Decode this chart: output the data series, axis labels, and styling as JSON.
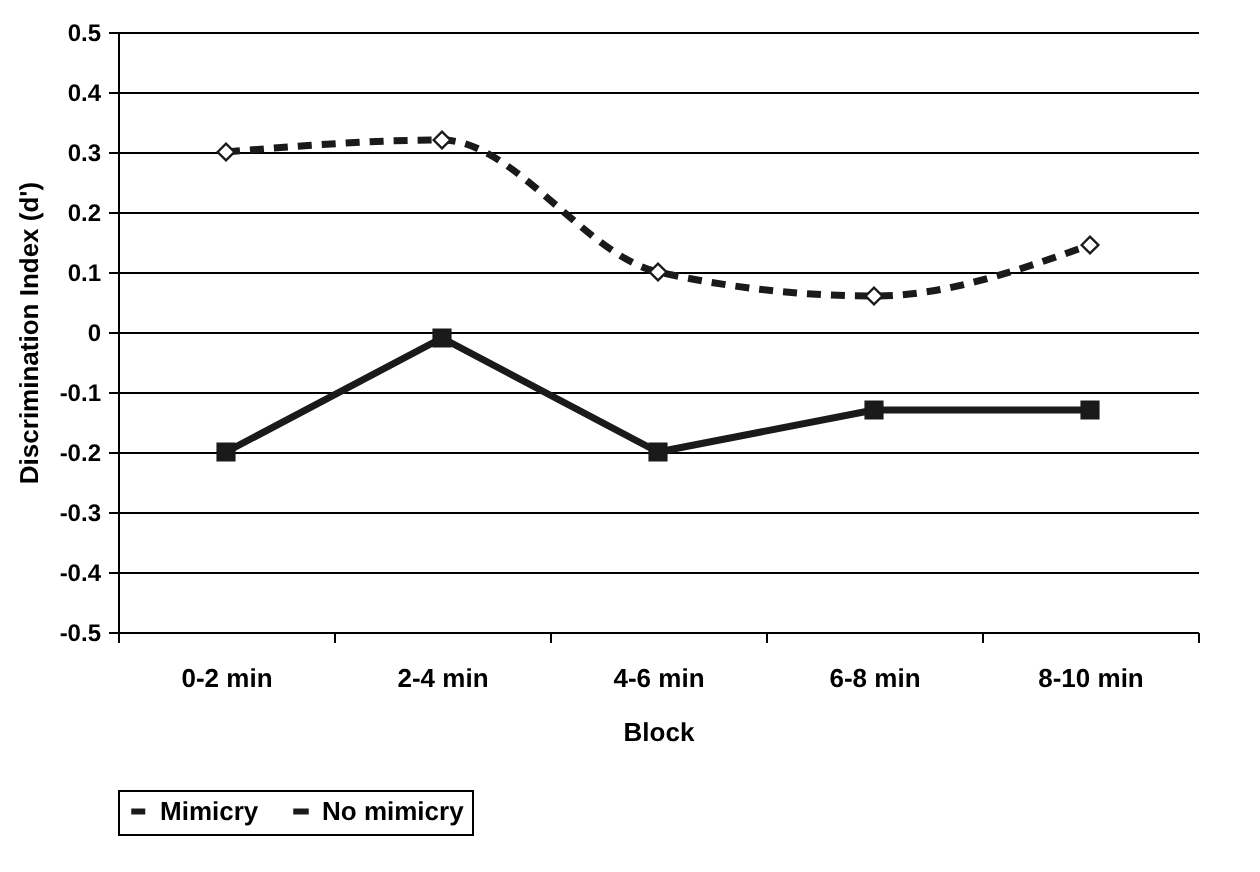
{
  "chart_data": {
    "type": "line",
    "xlabel": "Block",
    "ylabel": "Discrimination Index (d')",
    "categories": [
      "0-2 min",
      "2-4 min",
      "4-6 min",
      "6-8 min",
      "8-10 min"
    ],
    "series": [
      {
        "name": "Mimicry",
        "color": "#1a1a1a",
        "values": [
          0.3,
          0.32,
          0.1,
          0.06,
          0.145
        ],
        "marker": "diamond",
        "line_style": "dashed"
      },
      {
        "name": "No mimicry",
        "color": "#1a1a1a",
        "values": [
          -0.2,
          -0.01,
          -0.2,
          -0.13,
          -0.13
        ],
        "marker": "square",
        "line_style": "solid"
      }
    ],
    "ylim": [
      -0.5,
      0.5
    ],
    "yticks": [
      -0.5,
      -0.4,
      -0.3,
      -0.2,
      -0.1,
      0,
      0.1,
      0.2,
      0.3,
      0.4,
      0.5
    ],
    "grid": "y",
    "legend": "bottom"
  }
}
